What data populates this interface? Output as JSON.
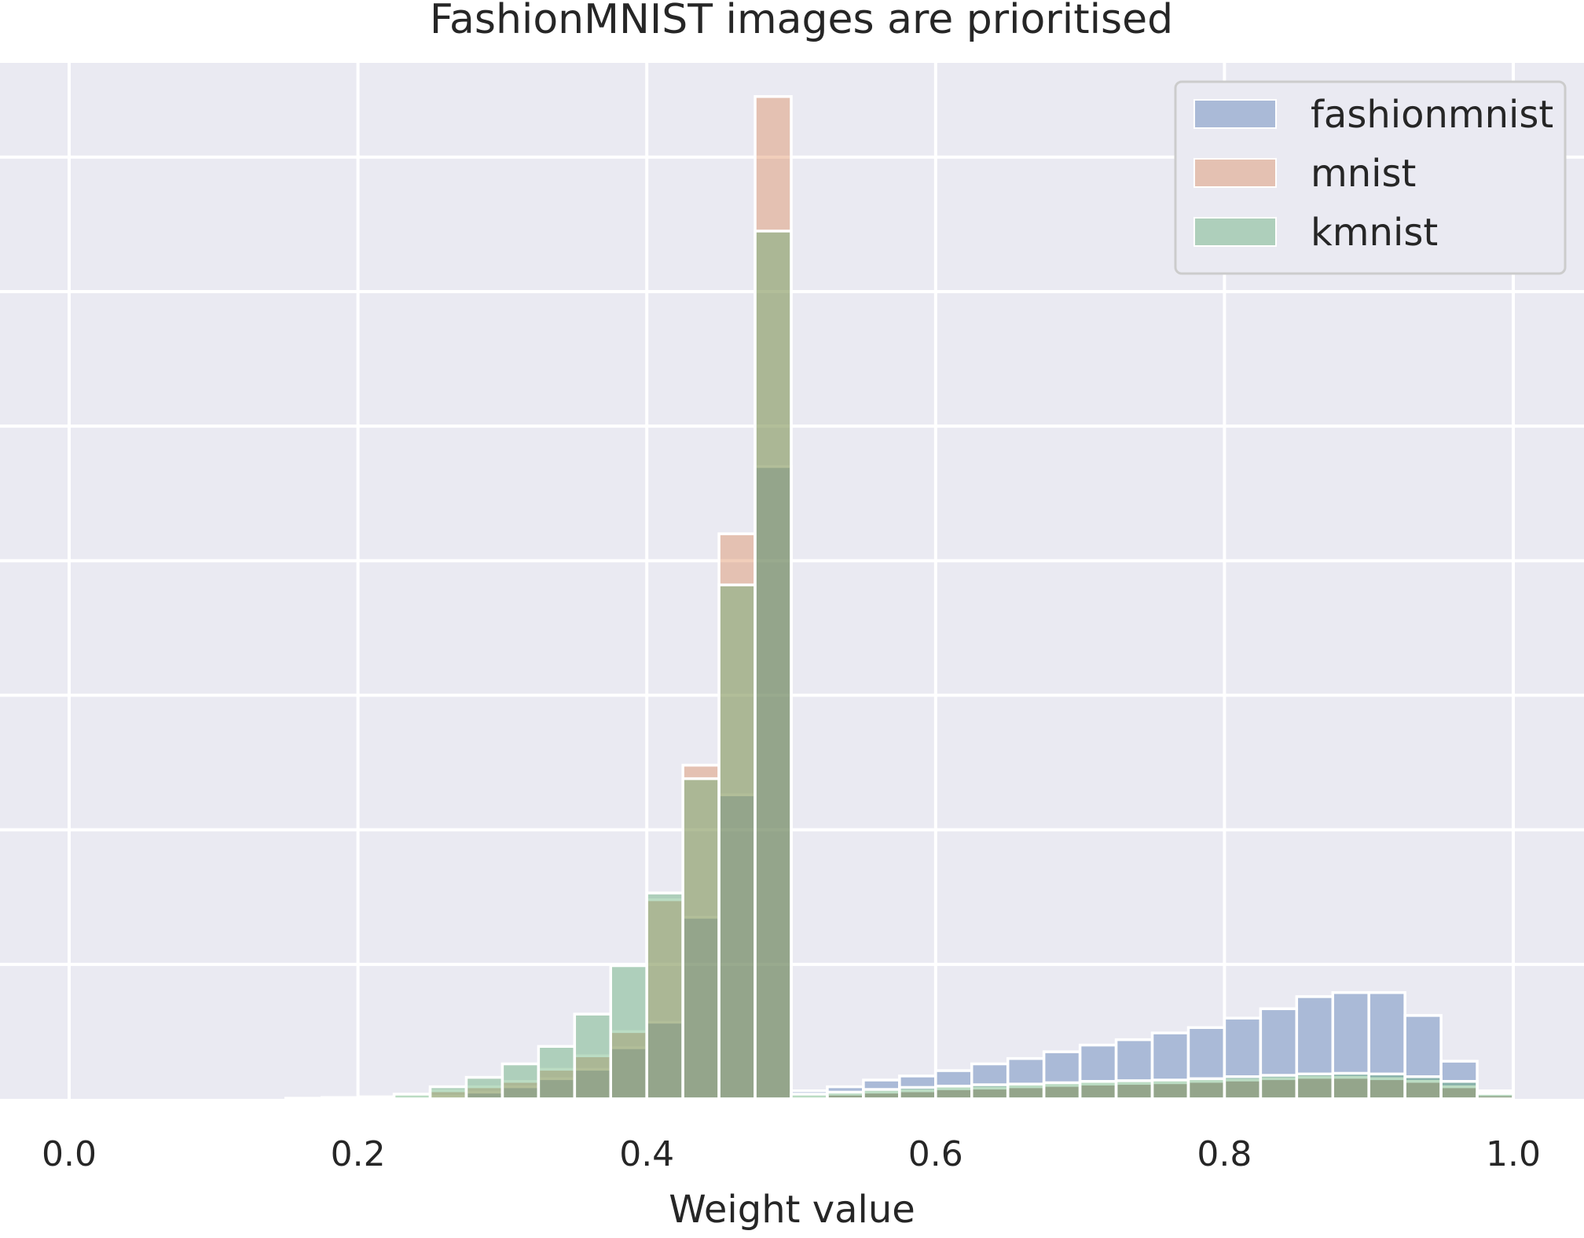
{
  "chart_data": {
    "type": "bar",
    "title": "FashionMNIST images are prioritised",
    "xlabel": "Weight value",
    "ylabel": "",
    "xlim": [
      -0.02,
      1.05
    ],
    "ylim": [
      0,
      77
    ],
    "xticks": [
      "0.0",
      "0.2",
      "0.4",
      "0.6",
      "0.8",
      "1.0"
    ],
    "xtick_values": [
      0.0,
      0.2,
      0.4,
      0.6,
      0.8,
      1.0
    ],
    "ygrid_values": [
      10,
      20,
      30,
      40,
      50,
      60,
      70
    ],
    "grid": true,
    "legend_position": "top-right",
    "bin_edges": [
      0.0,
      0.025,
      0.05,
      0.075,
      0.1,
      0.125,
      0.15,
      0.175,
      0.2,
      0.225,
      0.25,
      0.275,
      0.3,
      0.325,
      0.35,
      0.375,
      0.4,
      0.425,
      0.45,
      0.475,
      0.5,
      0.525,
      0.55,
      0.575,
      0.6,
      0.625,
      0.65,
      0.675,
      0.7,
      0.725,
      0.75,
      0.775,
      0.8,
      0.825,
      0.85,
      0.875,
      0.9,
      0.925,
      0.95,
      0.975,
      1.0
    ],
    "series": [
      {
        "name": "fashionmnist",
        "color": "#4c72b0",
        "values": [
          0,
          0,
          0,
          0,
          0,
          0,
          0,
          0,
          0,
          0,
          0.2,
          0.5,
          0.9,
          1.5,
          2.2,
          3.8,
          5.7,
          13.5,
          22.6,
          47.0,
          0.6,
          0.9,
          1.4,
          1.7,
          2.1,
          2.6,
          3.0,
          3.5,
          4.0,
          4.4,
          4.9,
          5.3,
          6.0,
          6.7,
          7.6,
          7.9,
          7.9,
          6.2,
          2.8,
          0.6
        ]
      },
      {
        "name": "mnist",
        "color": "#dd8452",
        "values": [
          0,
          0,
          0,
          0,
          0,
          0,
          0.05,
          0.1,
          0.15,
          0.2,
          0.6,
          0.9,
          1.3,
          2.2,
          3.2,
          5.0,
          14.8,
          24.8,
          42.0,
          74.5,
          0.15,
          0.35,
          0.5,
          0.6,
          0.75,
          0.8,
          0.9,
          1.0,
          1.1,
          1.15,
          1.2,
          1.3,
          1.4,
          1.5,
          1.6,
          1.6,
          1.5,
          1.3,
          0.9,
          0.3
        ]
      },
      {
        "name": "kmnist",
        "color": "#55a868",
        "values": [
          0,
          0,
          0,
          0,
          0,
          0,
          0,
          0,
          0.1,
          0.35,
          0.9,
          1.6,
          2.6,
          3.9,
          6.3,
          9.9,
          15.3,
          23.8,
          38.2,
          64.5,
          0.35,
          0.5,
          0.7,
          0.85,
          0.95,
          1.05,
          1.1,
          1.2,
          1.3,
          1.35,
          1.4,
          1.5,
          1.65,
          1.75,
          1.85,
          1.9,
          1.85,
          1.65,
          1.3,
          0.4
        ]
      }
    ]
  }
}
